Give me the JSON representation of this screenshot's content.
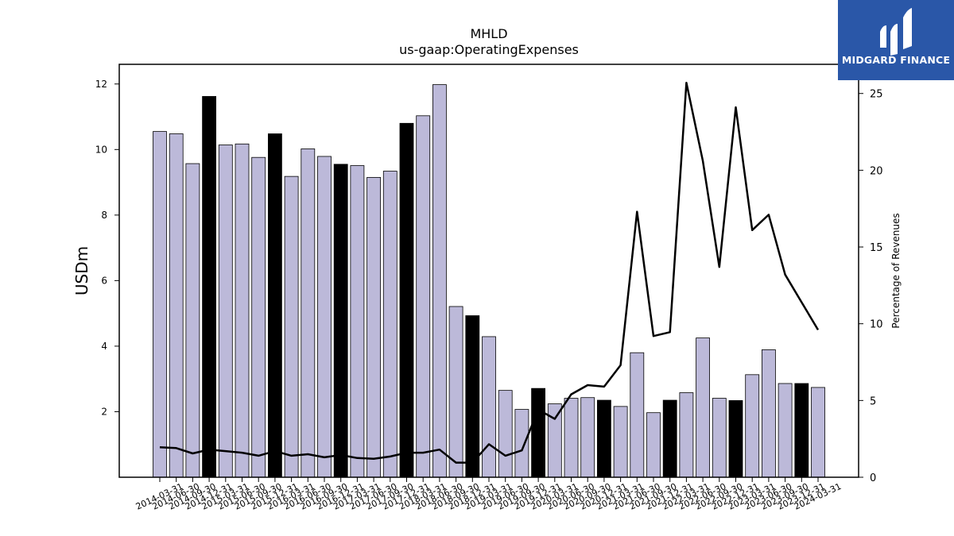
{
  "chart_data": {
    "type": "bar",
    "title": "MHLD",
    "subtitle": "us-gaap:OperatingExpenses",
    "xlabel": "",
    "ylabel": "USDm",
    "y2label": "Percentage of Revenues",
    "ylim": [
      0,
      12.6
    ],
    "y2lim": [
      0,
      26.9
    ],
    "yticks": [
      "2",
      "4",
      "6",
      "8",
      "10",
      "12"
    ],
    "y2ticks": [
      "0",
      "5",
      "10",
      "15",
      "20",
      "25"
    ],
    "grid": false,
    "categories": [
      "2014-03-31",
      "2014-06-30",
      "2014-09-30",
      "2014-12-31",
      "2015-03-31",
      "2015-06-30",
      "2015-09-30",
      "2015-12-31",
      "2016-03-31",
      "2016-06-30",
      "2016-09-30",
      "2016-12-31",
      "2017-03-31",
      "2017-06-30",
      "2017-09-30",
      "2017-12-31",
      "2018-03-31",
      "2018-06-30",
      "2018-09-30",
      "2018-12-31",
      "2019-03-31",
      "2019-06-30",
      "2019-09-30",
      "2019-12-31",
      "2020-03-31",
      "2020-06-30",
      "2020-09-30",
      "2020-12-31",
      "2021-03-31",
      "2021-06-30",
      "2021-09-30",
      "2021-12-31",
      "2022-03-31",
      "2022-06-30",
      "2022-09-30",
      "2022-12-31",
      "2023-03-31",
      "2023-06-30",
      "2023-09-30",
      "2023-12-31",
      "2024-03-31"
    ],
    "series": [
      {
        "type": "bar",
        "values": [
          10.55,
          10.48,
          9.57,
          11.62,
          10.14,
          10.17,
          9.76,
          10.48,
          9.18,
          10.02,
          9.79,
          9.55,
          9.51,
          9.15,
          9.34,
          10.8,
          11.03,
          11.98,
          5.21,
          4.93,
          4.29,
          2.65,
          2.07,
          2.71,
          2.24,
          2.41,
          2.43,
          2.35,
          2.16,
          3.8,
          1.97,
          2.35,
          2.58,
          4.25,
          2.41,
          2.34,
          3.13,
          3.89,
          2.86,
          2.86,
          2.74
        ],
        "highlight": [
          false,
          false,
          false,
          true,
          false,
          false,
          false,
          true,
          false,
          false,
          false,
          true,
          false,
          false,
          false,
          true,
          false,
          false,
          false,
          true,
          false,
          false,
          false,
          true,
          false,
          false,
          false,
          true,
          false,
          false,
          false,
          true,
          false,
          false,
          false,
          true,
          false,
          false,
          false,
          true,
          false
        ]
      },
      {
        "type": "line",
        "axis": "right",
        "values": [
          1.95,
          1.9,
          1.55,
          1.8,
          1.7,
          1.6,
          1.4,
          1.7,
          1.4,
          1.5,
          1.3,
          1.45,
          1.25,
          1.2,
          1.35,
          1.6,
          1.6,
          1.8,
          0.95,
          0.95,
          2.15,
          1.4,
          1.75,
          4.4,
          3.8,
          5.4,
          6.0,
          5.9,
          7.3,
          17.3,
          9.2,
          9.45,
          25.7,
          20.6,
          13.7,
          24.1,
          16.1,
          17.1,
          13.2,
          11.4,
          9.6
        ]
      }
    ],
    "colors": {
      "bar": "#bcb9d9",
      "highlight_bar": "#000000",
      "line": "#000000"
    }
  },
  "logo": {
    "text": "MIDGARD FINANCE",
    "bg": "#2a57a8"
  }
}
